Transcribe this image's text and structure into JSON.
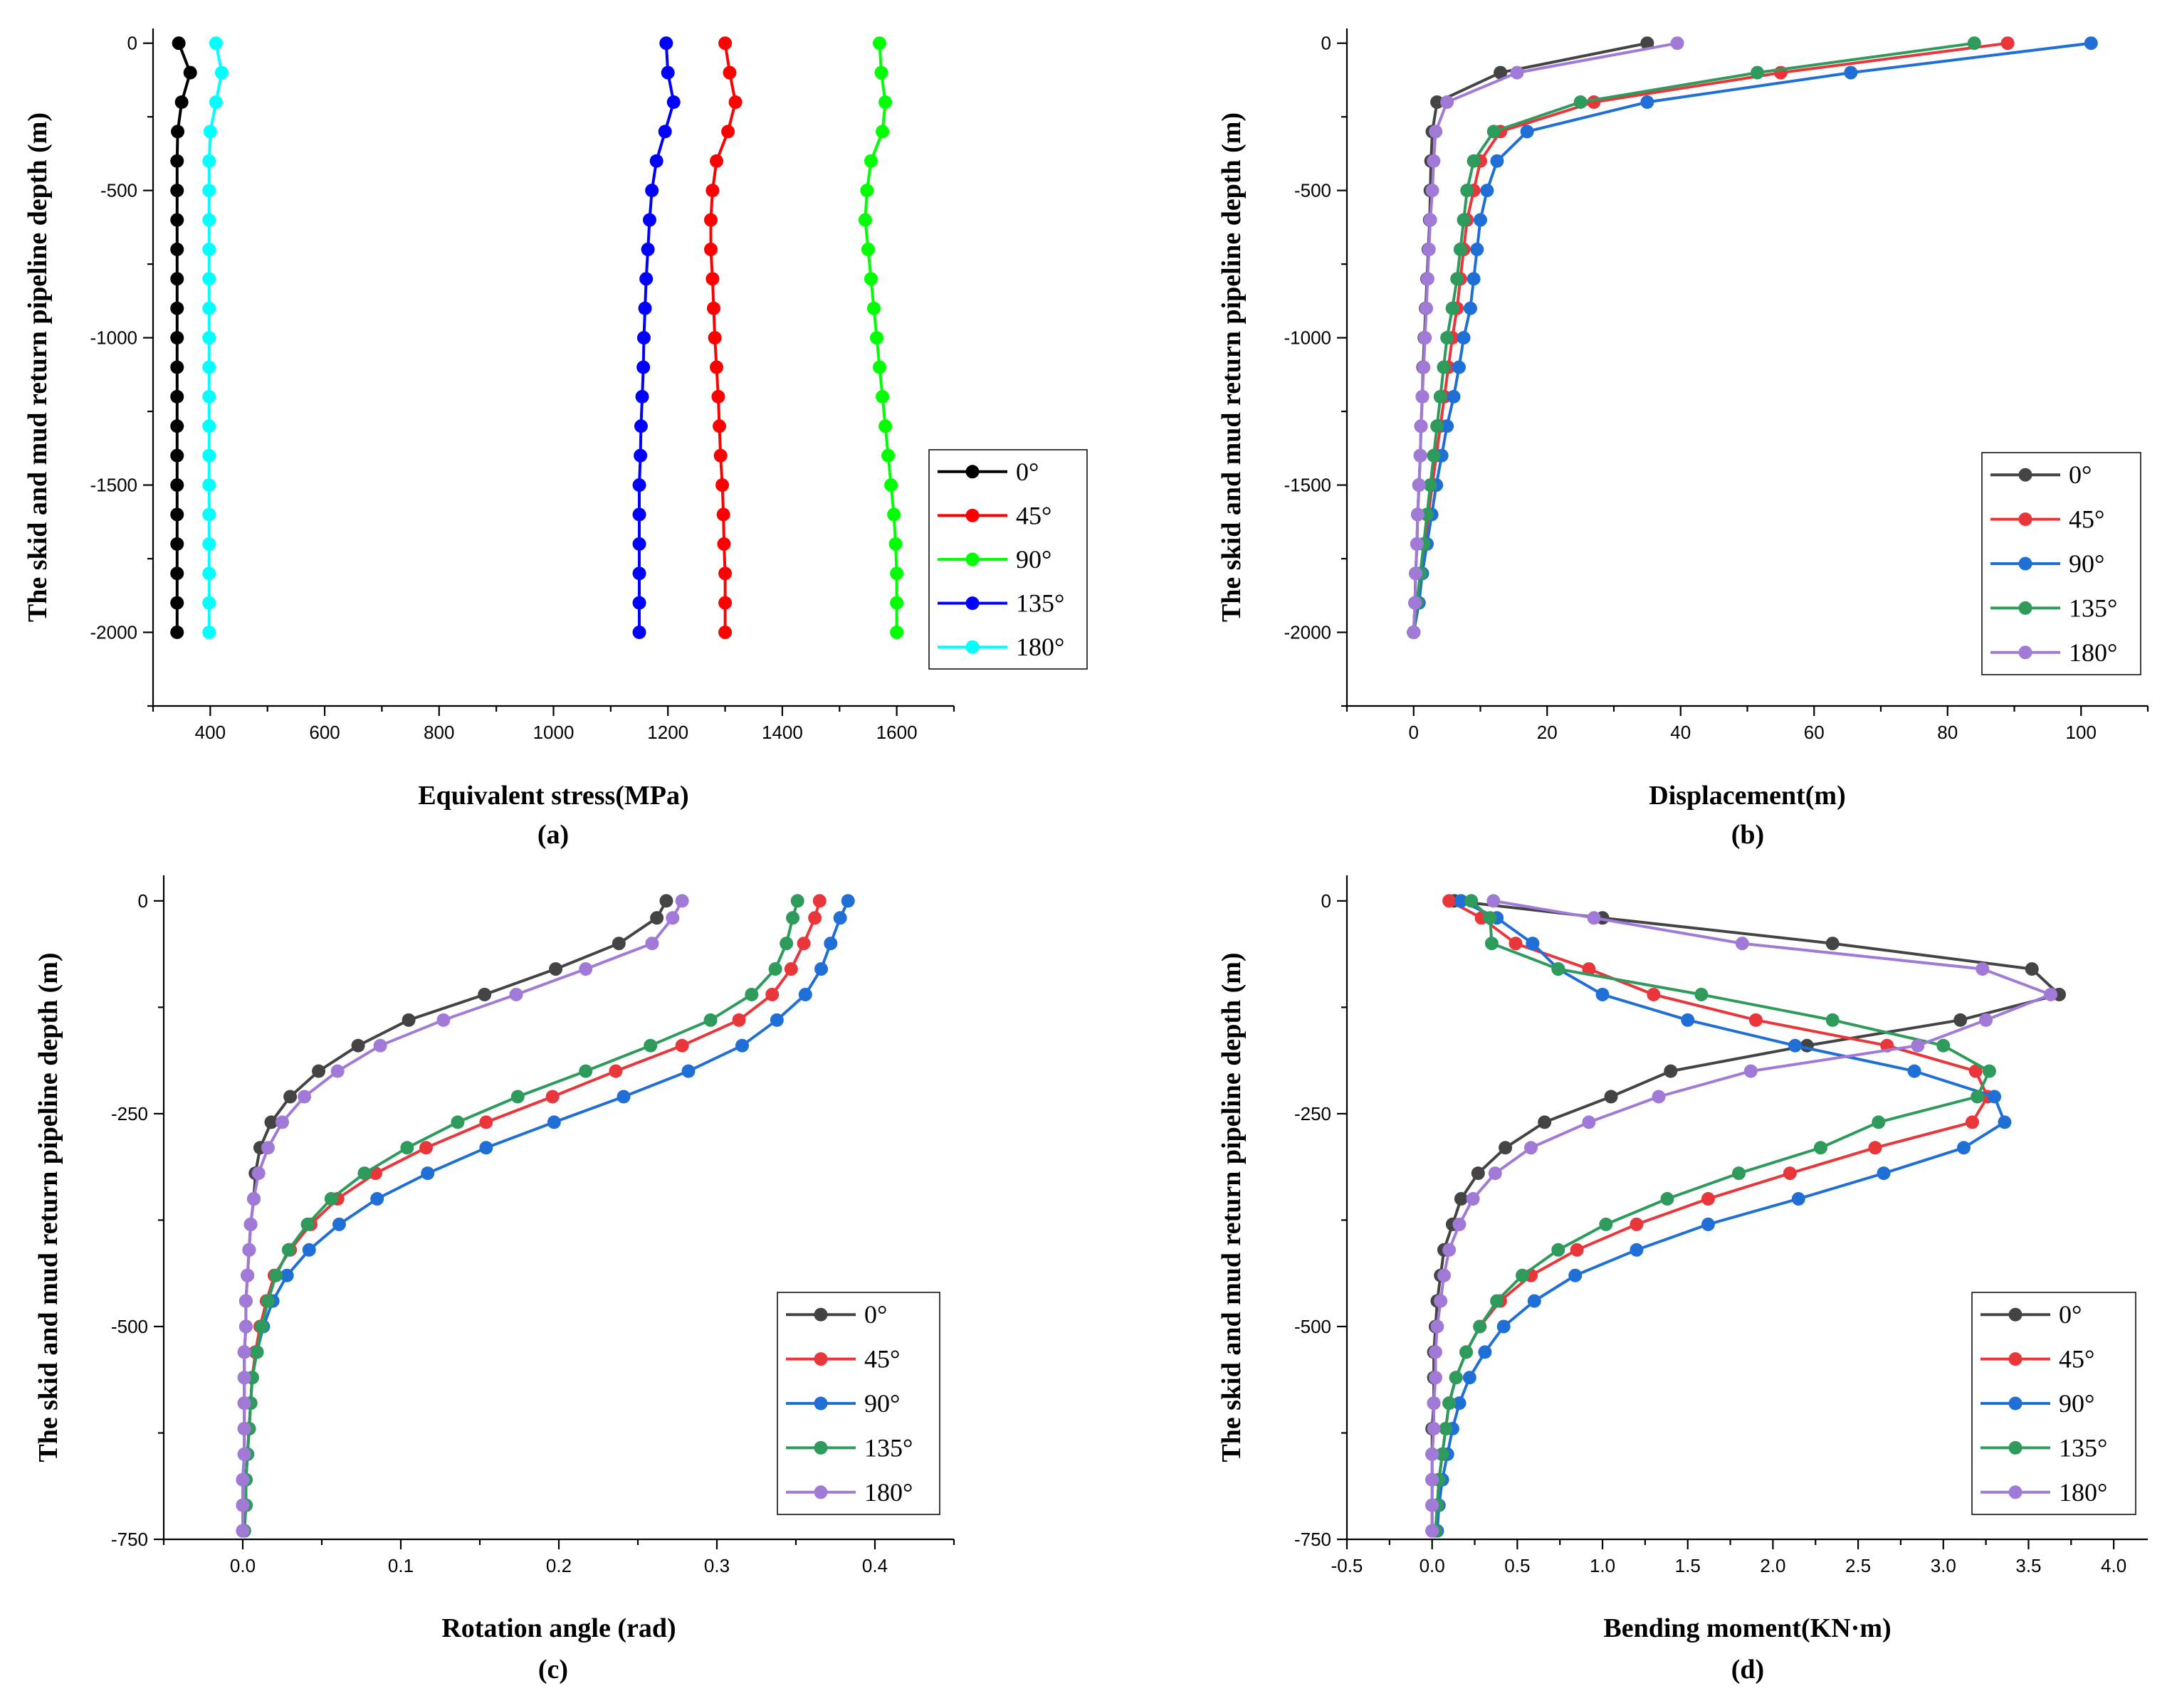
{
  "chart_data": [
    {
      "type": "line",
      "panel_label": "(a)",
      "xlabel": "Equivalent stress(MPa)",
      "ylabel": "The skid and mud return pipeline depth (m)",
      "xlim": [
        300,
        1700
      ],
      "ylim": [
        -2250,
        50
      ],
      "xticks": [
        400,
        600,
        800,
        1000,
        1200,
        1400,
        1600
      ],
      "yticks": [
        0,
        -500,
        -1000,
        -1500,
        -2000
      ],
      "legend_position": "right-middle",
      "y": [
        0,
        -100,
        -200,
        -300,
        -400,
        -500,
        -600,
        -700,
        -800,
        -900,
        -1000,
        -1100,
        -1200,
        -1300,
        -1400,
        -1500,
        -1600,
        -1700,
        -1800,
        -1900,
        -2000
      ],
      "series": [
        {
          "name": "0°",
          "color": "#000000",
          "x": [
            345,
            365,
            350,
            343,
            342,
            342,
            342,
            342,
            342,
            342,
            342,
            342,
            342,
            342,
            342,
            342,
            342,
            342,
            342,
            342,
            342
          ]
        },
        {
          "name": "45°",
          "color": "#ff0000",
          "x": [
            1300,
            1308,
            1318,
            1305,
            1285,
            1278,
            1275,
            1275,
            1278,
            1280,
            1282,
            1285,
            1288,
            1290,
            1292,
            1295,
            1297,
            1298,
            1300,
            1300,
            1300
          ]
        },
        {
          "name": "90°",
          "color": "#00ff00",
          "x": [
            1570,
            1573,
            1580,
            1575,
            1555,
            1548,
            1545,
            1550,
            1555,
            1560,
            1565,
            1570,
            1575,
            1580,
            1585,
            1590,
            1595,
            1598,
            1600,
            1600,
            1600
          ]
        },
        {
          "name": "135°",
          "color": "#0000ff",
          "x": [
            1197,
            1200,
            1210,
            1195,
            1180,
            1172,
            1168,
            1165,
            1162,
            1160,
            1158,
            1157,
            1155,
            1153,
            1152,
            1150,
            1150,
            1150,
            1150,
            1150,
            1150
          ]
        },
        {
          "name": "180°",
          "color": "#00ffff",
          "x": [
            410,
            420,
            410,
            400,
            398,
            398,
            398,
            398,
            398,
            398,
            398,
            398,
            398,
            398,
            398,
            398,
            398,
            398,
            398,
            398,
            398
          ]
        }
      ]
    },
    {
      "type": "line",
      "panel_label": "(b)",
      "xlabel": "Displacement(m)",
      "ylabel": "The skid and mud return pipeline depth (m)",
      "xlim": [
        -10,
        110
      ],
      "ylim": [
        -2250,
        50
      ],
      "xticks": [
        0,
        20,
        40,
        60,
        80,
        100
      ],
      "yticks": [
        0,
        -500,
        -1000,
        -1500,
        -2000
      ],
      "legend_position": "bottom-right",
      "y": [
        0,
        -100,
        -200,
        -300,
        -400,
        -500,
        -600,
        -700,
        -800,
        -900,
        -1000,
        -1100,
        -1200,
        -1300,
        -1400,
        -1500,
        -1600,
        -1700,
        -1800,
        -1900,
        -2000
      ],
      "series": [
        {
          "name": "0°",
          "color": "#444444",
          "x": [
            35,
            13,
            3.5,
            2.8,
            2.6,
            2.5,
            2.4,
            2.2,
            2.0,
            1.8,
            1.6,
            1.4,
            1.3,
            1.1,
            1.0,
            0.8,
            0.6,
            0.5,
            0.3,
            0.2,
            0
          ]
        },
        {
          "name": "45°",
          "color": "#e8363a",
          "x": [
            89,
            55,
            27,
            13,
            10,
            9,
            8,
            7.5,
            7,
            6.5,
            5.8,
            5.2,
            4.6,
            4,
            3.4,
            2.8,
            2.2,
            1.7,
            1.2,
            0.7,
            0
          ]
        },
        {
          "name": "90°",
          "color": "#1f6fd6",
          "x": [
            101.5,
            65.5,
            35,
            17,
            12.5,
            11,
            10,
            9.5,
            9,
            8.5,
            7.5,
            6.8,
            6,
            5,
            4.2,
            3.4,
            2.7,
            2.0,
            1.3,
            0.8,
            0
          ]
        },
        {
          "name": "135°",
          "color": "#2e9a5c",
          "x": [
            84,
            51.5,
            25,
            12,
            9,
            8,
            7.5,
            7,
            6.5,
            5.8,
            5,
            4.5,
            4,
            3.5,
            3,
            2.5,
            2,
            1.5,
            1,
            0.5,
            0
          ]
        },
        {
          "name": "180°",
          "color": "#a07ad6",
          "x": [
            39.5,
            15.5,
            5,
            3.3,
            3.0,
            2.8,
            2.5,
            2.3,
            2.1,
            1.9,
            1.7,
            1.5,
            1.3,
            1.1,
            1.0,
            0.8,
            0.6,
            0.5,
            0.3,
            0.2,
            0
          ]
        }
      ]
    },
    {
      "type": "line",
      "panel_label": "(c)",
      "xlabel": "Rotation angle (rad)",
      "ylabel": "The skid and mud return pipeline depth (m)",
      "xlim": [
        -0.05,
        0.45
      ],
      "ylim": [
        -750,
        30
      ],
      "xticks": [
        0.0,
        0.1,
        0.2,
        0.3,
        0.4
      ],
      "xtick_labels": [
        "0.0",
        "0.1",
        "0.2",
        "0.3",
        "0.4"
      ],
      "yticks": [
        0,
        -250,
        -500,
        -750
      ],
      "legend_position": "bottom-right",
      "y": [
        0,
        -20,
        -50,
        -80,
        -110,
        -140,
        -170,
        -200,
        -230,
        -260,
        -290,
        -320,
        -350,
        -380,
        -410,
        -440,
        -470,
        -500,
        -530,
        -560,
        -590,
        -620,
        -650,
        -680,
        -710,
        -740
      ],
      "series": [
        {
          "name": "0°",
          "color": "#444444",
          "x": [
            0.268,
            0.262,
            0.238,
            0.198,
            0.153,
            0.105,
            0.073,
            0.048,
            0.03,
            0.018,
            0.011,
            0.008,
            0.007,
            0.005,
            0.004,
            0.003,
            0.002,
            0.002,
            0.001,
            0.001,
            0.001,
            0.001,
            0.001,
            0.0,
            0.0,
            0.0
          ]
        },
        {
          "name": "45°",
          "color": "#e8363a",
          "x": [
            0.365,
            0.362,
            0.355,
            0.347,
            0.335,
            0.314,
            0.278,
            0.236,
            0.196,
            0.154,
            0.116,
            0.084,
            0.06,
            0.043,
            0.03,
            0.02,
            0.015,
            0.011,
            0.008,
            0.006,
            0.005,
            0.004,
            0.003,
            0.002,
            0.002,
            0.001
          ]
        },
        {
          "name": "90°",
          "color": "#1f6fd6",
          "x": [
            0.383,
            0.378,
            0.372,
            0.366,
            0.356,
            0.338,
            0.316,
            0.282,
            0.241,
            0.197,
            0.154,
            0.117,
            0.085,
            0.061,
            0.042,
            0.028,
            0.019,
            0.013,
            0.009,
            0.006,
            0.005,
            0.004,
            0.003,
            0.002,
            0.002,
            0.001
          ]
        },
        {
          "name": "135°",
          "color": "#2e9a5c",
          "x": [
            0.351,
            0.348,
            0.344,
            0.337,
            0.322,
            0.296,
            0.258,
            0.217,
            0.174,
            0.136,
            0.104,
            0.077,
            0.056,
            0.041,
            0.029,
            0.021,
            0.016,
            0.012,
            0.009,
            0.006,
            0.005,
            0.004,
            0.003,
            0.002,
            0.002,
            0.001
          ]
        },
        {
          "name": "180°",
          "color": "#a07ad6",
          "x": [
            0.278,
            0.272,
            0.259,
            0.217,
            0.173,
            0.127,
            0.087,
            0.06,
            0.039,
            0.025,
            0.016,
            0.01,
            0.007,
            0.005,
            0.004,
            0.003,
            0.002,
            0.002,
            0.001,
            0.001,
            0.001,
            0.001,
            0.001,
            0.0,
            0.0,
            0.0
          ]
        }
      ]
    },
    {
      "type": "line",
      "panel_label": "(d)",
      "xlabel": "Bending moment(KN·m)",
      "ylabel": "The skid and mud return pipeline depth (m)",
      "xlim": [
        -0.5,
        4.2
      ],
      "ylim": [
        -750,
        30
      ],
      "xticks": [
        -0.5,
        0.0,
        0.5,
        1.0,
        1.5,
        2.0,
        2.5,
        3.0,
        3.5,
        4.0
      ],
      "xtick_labels": [
        "-0.5",
        "0.0",
        "0.5",
        "1.0",
        "1.5",
        "2.0",
        "2.5",
        "3.0",
        "3.5",
        "4.0"
      ],
      "yticks": [
        0,
        -250,
        -500,
        -750
      ],
      "legend_position": "bottom-right",
      "y": [
        0,
        -20,
        -50,
        -80,
        -110,
        -140,
        -170,
        -200,
        -230,
        -260,
        -290,
        -320,
        -350,
        -380,
        -410,
        -440,
        -470,
        -500,
        -530,
        -560,
        -590,
        -620,
        -650,
        -680,
        -710,
        -740
      ],
      "series": [
        {
          "name": "0°",
          "color": "#444444",
          "x": [
            0.13,
            1.0,
            2.35,
            3.52,
            3.68,
            3.1,
            2.2,
            1.4,
            1.05,
            0.66,
            0.43,
            0.27,
            0.17,
            0.12,
            0.07,
            0.05,
            0.03,
            0.02,
            0.01,
            0.01,
            0.01,
            0.0,
            0.0,
            0.0,
            0.0,
            0.0
          ]
        },
        {
          "name": "45°",
          "color": "#e8363a",
          "x": [
            0.1,
            0.29,
            0.49,
            0.92,
            1.3,
            1.9,
            2.67,
            3.19,
            3.26,
            3.17,
            2.6,
            2.1,
            1.62,
            1.2,
            0.85,
            0.58,
            0.4,
            0.28,
            0.2,
            0.14,
            0.1,
            0.08,
            0.06,
            0.04,
            0.03,
            0.02
          ]
        },
        {
          "name": "90°",
          "color": "#1f6fd6",
          "x": [
            0.17,
            0.38,
            0.59,
            0.74,
            1.0,
            1.5,
            2.13,
            2.83,
            3.3,
            3.36,
            3.12,
            2.65,
            2.15,
            1.62,
            1.2,
            0.84,
            0.6,
            0.42,
            0.31,
            0.22,
            0.16,
            0.12,
            0.09,
            0.06,
            0.04,
            0.03
          ]
        },
        {
          "name": "135°",
          "color": "#2e9a5c",
          "x": [
            0.23,
            0.34,
            0.35,
            0.74,
            1.58,
            2.35,
            3.0,
            3.27,
            3.2,
            2.62,
            2.28,
            1.8,
            1.38,
            1.02,
            0.74,
            0.53,
            0.38,
            0.28,
            0.2,
            0.14,
            0.1,
            0.08,
            0.06,
            0.04,
            0.03,
            0.02
          ]
        },
        {
          "name": "180°",
          "color": "#a07ad6",
          "x": [
            0.36,
            0.95,
            1.82,
            3.23,
            3.63,
            3.25,
            2.85,
            1.87,
            1.33,
            0.92,
            0.58,
            0.37,
            0.24,
            0.16,
            0.1,
            0.07,
            0.05,
            0.03,
            0.02,
            0.02,
            0.01,
            0.01,
            0.0,
            0.0,
            0.0,
            0.0
          ]
        }
      ]
    }
  ]
}
